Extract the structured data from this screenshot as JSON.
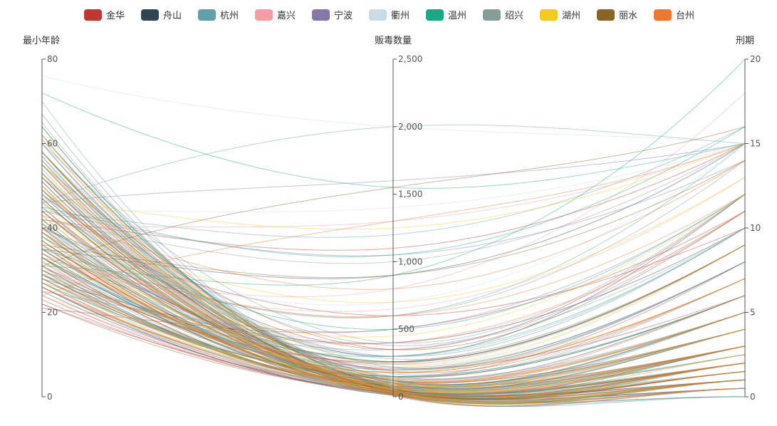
{
  "chart_data": {
    "type": "parallel",
    "axes": [
      {
        "name": "最小年龄",
        "min": 0,
        "max": 80,
        "ticks": [
          0,
          20,
          40,
          60,
          80
        ],
        "tick_labels": [
          "0",
          "20",
          "40",
          "60",
          "80"
        ]
      },
      {
        "name": "贩毒数量",
        "min": 0,
        "max": 2500,
        "ticks": [
          0,
          500,
          1000,
          1500,
          2000,
          2500
        ],
        "tick_labels": [
          "0",
          "500",
          "1,000",
          "1,500",
          "2,000",
          "2,500"
        ]
      },
      {
        "name": "刑期",
        "min": 0,
        "max": 20,
        "ticks": [
          0,
          5,
          10,
          15,
          20
        ],
        "tick_labels": [
          "0",
          "5",
          "10",
          "15",
          "20"
        ]
      }
    ],
    "legend_position": "top-center",
    "smooth": true,
    "series": [
      {
        "name": "金华",
        "color": "#c23531",
        "lines": [
          [
            23,
            40,
            2
          ],
          [
            28,
            90,
            4
          ],
          [
            35,
            150,
            8
          ],
          [
            45,
            60,
            3
          ],
          [
            52,
            30,
            1
          ],
          [
            30,
            210,
            6
          ],
          [
            26,
            15,
            0.5
          ],
          [
            40,
            600,
            10
          ],
          [
            22,
            80,
            3
          ],
          [
            33,
            20,
            1
          ],
          [
            48,
            350,
            12
          ],
          [
            37,
            120,
            5
          ],
          [
            27,
            45,
            2
          ],
          [
            55,
            10,
            0.5
          ],
          [
            31,
            180,
            7
          ],
          [
            42,
            1100,
            15
          ],
          [
            29,
            60,
            2.5
          ],
          [
            24,
            25,
            1
          ],
          [
            38,
            260,
            9
          ],
          [
            50,
            40,
            1.5
          ],
          [
            21,
            500,
            11
          ]
        ]
      },
      {
        "name": "舟山",
        "color": "#2f4554",
        "lines": [
          [
            25,
            30,
            1
          ],
          [
            34,
            80,
            3
          ],
          [
            47,
            20,
            0.5
          ],
          [
            58,
            120,
            5
          ],
          [
            30,
            60,
            2
          ],
          [
            41,
            200,
            8
          ],
          [
            36,
            15,
            0
          ],
          [
            28,
            400,
            10
          ],
          [
            52,
            90,
            4
          ],
          [
            44,
            35,
            1.5
          ],
          [
            60,
            70,
            2
          ],
          [
            33,
            150,
            6
          ],
          [
            26,
            10,
            0.5
          ],
          [
            39,
            260,
            9
          ],
          [
            49,
            50,
            3
          ],
          [
            35,
            900,
            15
          ],
          [
            31,
            40,
            2
          ],
          [
            57,
            25,
            1
          ],
          [
            46,
            300,
            12
          ],
          [
            29,
            110,
            4
          ]
        ]
      },
      {
        "name": "杭州",
        "color": "#61a0a8",
        "lines": [
          [
            30,
            50,
            2
          ],
          [
            62,
            100,
            5
          ],
          [
            45,
            20,
            0
          ],
          [
            38,
            300,
            10
          ],
          [
            55,
            40,
            1
          ],
          [
            27,
            150,
            6
          ],
          [
            48,
            80,
            3
          ],
          [
            70,
            30,
            1
          ],
          [
            35,
            600,
            15
          ],
          [
            52,
            60,
            2.5
          ],
          [
            41,
            10,
            0.5
          ],
          [
            58,
            220,
            8
          ],
          [
            33,
            90,
            4
          ],
          [
            65,
            45,
            2
          ],
          [
            44,
            1200,
            16
          ],
          [
            29,
            130,
            5
          ],
          [
            50,
            25,
            1
          ],
          [
            37,
            70,
            3
          ],
          [
            60,
            400,
            12
          ],
          [
            32,
            35,
            1.5
          ],
          [
            46,
            2000,
            15
          ],
          [
            56,
            170,
            7
          ],
          [
            40,
            55,
            2
          ]
        ]
      },
      {
        "name": "嘉兴",
        "color": "#f29ea4",
        "lines": [
          [
            24,
            60,
            3
          ],
          [
            36,
            120,
            5
          ],
          [
            50,
            30,
            1
          ],
          [
            29,
            800,
            18
          ],
          [
            42,
            70,
            2.5
          ],
          [
            57,
            15,
            0.5
          ],
          [
            31,
            250,
            9
          ],
          [
            45,
            90,
            4
          ],
          [
            26,
            40,
            1.5
          ],
          [
            53,
            180,
            7
          ],
          [
            38,
            20,
            1
          ],
          [
            34,
            400,
            11
          ],
          [
            48,
            55,
            2
          ],
          [
            61,
            110,
            5
          ],
          [
            27,
            35,
            1
          ],
          [
            40,
            1300,
            15
          ],
          [
            32,
            75,
            3
          ],
          [
            55,
            25,
            1
          ],
          [
            44,
            200,
            8
          ],
          [
            30,
            650,
            13
          ]
        ]
      },
      {
        "name": "宁波",
        "color": "#8677a6",
        "lines": [
          [
            28,
            80,
            3
          ],
          [
            43,
            40,
            1.5
          ],
          [
            55,
            150,
            6
          ],
          [
            33,
            20,
            0.5
          ],
          [
            48,
            300,
            10
          ],
          [
            37,
            60,
            2
          ],
          [
            62,
            100,
            4
          ],
          [
            25,
            500,
            12
          ],
          [
            51,
            30,
            1
          ],
          [
            40,
            220,
            8
          ],
          [
            46,
            1600,
            15
          ],
          [
            30,
            45,
            2
          ],
          [
            58,
            70,
            3
          ],
          [
            35,
            130,
            5
          ],
          [
            44,
            1050,
            14
          ],
          [
            27,
            15,
            0.5
          ],
          [
            52,
            380,
            11
          ],
          [
            39,
            90,
            4
          ],
          [
            67,
            50,
            2
          ],
          [
            32,
            250,
            9
          ]
        ]
      },
      {
        "name": "衢州",
        "color": "#c9dbe6",
        "lines": [
          [
            76,
            2000,
            15
          ],
          [
            42,
            60,
            2
          ],
          [
            30,
            30,
            1
          ],
          [
            54,
            100,
            4
          ],
          [
            37,
            200,
            7
          ],
          [
            48,
            20,
            0.5
          ],
          [
            25,
            80,
            3
          ],
          [
            60,
            40,
            1.5
          ],
          [
            34,
            700,
            15
          ],
          [
            45,
            130,
            5
          ],
          [
            28,
            50,
            2
          ],
          [
            50,
            300,
            10
          ],
          [
            39,
            15,
            0.5
          ],
          [
            57,
            90,
            3
          ],
          [
            32,
            160,
            6
          ],
          [
            44,
            1400,
            15
          ],
          [
            70,
            40,
            2
          ],
          [
            36,
            70,
            3
          ],
          [
            52,
            250,
            9
          ],
          [
            29,
            20,
            1
          ]
        ]
      },
      {
        "name": "温州",
        "color": "#1aa783",
        "lines": [
          [
            72,
            1550,
            15
          ],
          [
            35,
            50,
            2
          ],
          [
            48,
            20,
            0.5
          ],
          [
            58,
            100,
            4
          ],
          [
            30,
            300,
            10
          ],
          [
            42,
            40,
            1.5
          ],
          [
            64,
            60,
            3
          ],
          [
            27,
            150,
            6
          ],
          [
            51,
            15,
            0
          ],
          [
            38,
            80,
            3
          ],
          [
            45,
            1050,
            16
          ],
          [
            33,
            200,
            8
          ],
          [
            56,
            30,
            1
          ],
          [
            40,
            500,
            12
          ],
          [
            62,
            120,
            5
          ],
          [
            29,
            70,
            2.5
          ],
          [
            47,
            25,
            1
          ],
          [
            36,
            260,
            9
          ],
          [
            53,
            45,
            2
          ],
          [
            31,
            900,
            20
          ]
        ]
      },
      {
        "name": "绍兴",
        "color": "#869d97",
        "lines": [
          [
            26,
            40,
            1.5
          ],
          [
            41,
            90,
            3
          ],
          [
            54,
            30,
            1
          ],
          [
            33,
            200,
            8
          ],
          [
            47,
            60,
            2
          ],
          [
            60,
            20,
            0.5
          ],
          [
            29,
            350,
            10
          ],
          [
            44,
            110,
            4
          ],
          [
            37,
            50,
            2
          ],
          [
            52,
            150,
            6
          ],
          [
            31,
            15,
            0.5
          ],
          [
            49,
            280,
            9
          ],
          [
            39,
            75,
            3
          ],
          [
            57,
            35,
            1
          ],
          [
            35,
            600,
            14
          ],
          [
            45,
            100,
            4
          ],
          [
            28,
            25,
            1
          ],
          [
            62,
            130,
            5
          ],
          [
            42,
            1000,
            15
          ],
          [
            34,
            60,
            2.5
          ]
        ]
      },
      {
        "name": "湖州",
        "color": "#f6c91f",
        "lines": [
          [
            27,
            50,
            2
          ],
          [
            39,
            130,
            5
          ],
          [
            50,
            25,
            1
          ],
          [
            32,
            450,
            12
          ],
          [
            46,
            70,
            3
          ],
          [
            58,
            30,
            1
          ],
          [
            24,
            180,
            7
          ],
          [
            43,
            15,
            0.5
          ],
          [
            36,
            90,
            4
          ],
          [
            53,
            240,
            9
          ],
          [
            30,
            60,
            2.5
          ],
          [
            47,
            1250,
            15
          ],
          [
            38,
            35,
            1.5
          ],
          [
            55,
            110,
            4
          ],
          [
            33,
            20,
            1
          ],
          [
            41,
            700,
            13
          ],
          [
            28,
            80,
            3
          ],
          [
            62,
            45,
            2
          ]
        ]
      },
      {
        "name": "丽水",
        "color": "#8a6424",
        "lines": [
          [
            22,
            30,
            1
          ],
          [
            35,
            100,
            4
          ],
          [
            47,
            40,
            1.5
          ],
          [
            29,
            260,
            9
          ],
          [
            53,
            60,
            2
          ],
          [
            40,
            15,
            0.5
          ],
          [
            31,
            1550,
            16
          ],
          [
            44,
            120,
            5
          ],
          [
            58,
            25,
            1
          ],
          [
            26,
            80,
            3
          ],
          [
            49,
            190,
            7
          ],
          [
            37,
            50,
            2
          ],
          [
            55,
            350,
            11
          ],
          [
            33,
            20,
            1
          ],
          [
            42,
            70,
            3
          ],
          [
            28,
            140,
            6
          ],
          [
            51,
            40,
            1.5
          ],
          [
            36,
            900,
            14
          ],
          [
            64,
            60,
            2
          ],
          [
            39,
            30,
            1
          ]
        ]
      },
      {
        "name": "台州",
        "color": "#f0772e",
        "lines": [
          [
            24,
            1300,
            15
          ],
          [
            37,
            60,
            2
          ],
          [
            49,
            30,
            1
          ],
          [
            31,
            180,
            7
          ],
          [
            44,
            90,
            3
          ],
          [
            56,
            20,
            0.5
          ],
          [
            27,
            400,
            11
          ],
          [
            40,
            120,
            5
          ],
          [
            52,
            50,
            2
          ],
          [
            34,
            240,
            9
          ],
          [
            47,
            15,
            0.5
          ],
          [
            29,
            70,
            3
          ],
          [
            58,
            140,
            6
          ],
          [
            36,
            35,
            1.5
          ],
          [
            43,
            800,
            14
          ],
          [
            26,
            100,
            4
          ],
          [
            50,
            45,
            2
          ],
          [
            33,
            600,
            12
          ],
          [
            61,
            80,
            3
          ],
          [
            39,
            25,
            1
          ]
        ]
      }
    ]
  }
}
